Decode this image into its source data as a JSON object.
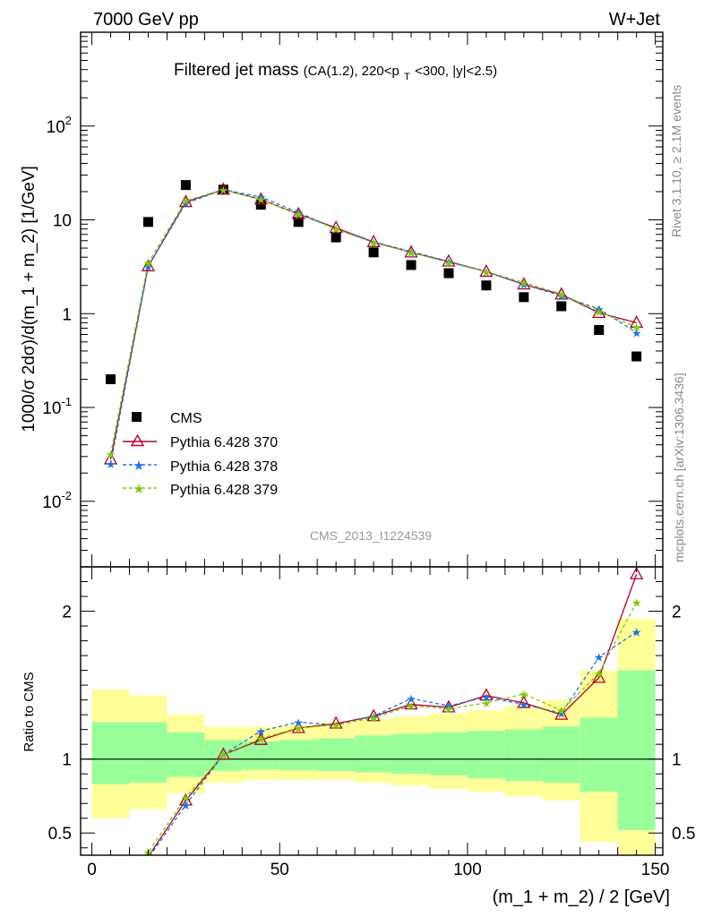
{
  "header": {
    "left": "7000 GeV pp",
    "right": "W+Jet"
  },
  "title": {
    "main": "Filtered jet mass",
    "sub_prefix": "(CA(1.2), 220<p",
    "sub_sub": "T",
    "sub_suffix": "<300, |y|<2.5)"
  },
  "side_labels": {
    "rivet": "Rivet 3.1.10, ≥ 2.1M events",
    "mcplots": "mcplots.cern.ch [arXiv:1306.3436]"
  },
  "analysis_id": "CMS_2013_I1224539",
  "colors": {
    "data": "#000000",
    "p370": "#b2002c",
    "p378": "#1a75e0",
    "p379": "#7ecc00",
    "band_inner": "#99ff99",
    "band_outer": "#ffff99"
  },
  "chart_data": [
    {
      "type": "scatter",
      "panel": "main",
      "ylabel": "1000/σ 2dσ)/d(m_1 + m_2) [1/GeV]",
      "yscale": "log",
      "ylim": [
        0.002,
        1000
      ],
      "xlim": [
        -3,
        152
      ],
      "ytick_labels": [
        {
          "v": 0.01,
          "base": "10",
          "exp": "-2"
        },
        {
          "v": 0.1,
          "base": "10",
          "exp": "-1"
        },
        {
          "v": 1,
          "base": "1",
          "exp": ""
        },
        {
          "v": 10,
          "base": "10",
          "exp": ""
        },
        {
          "v": 100,
          "base": "10",
          "exp": "2"
        }
      ],
      "x": [
        5,
        15,
        25,
        35,
        45,
        55,
        65,
        75,
        85,
        95,
        105,
        115,
        125,
        135,
        145
      ],
      "series": [
        {
          "name": "CMS",
          "key": "data",
          "values": [
            0.2,
            9.5,
            23.5,
            21,
            14.5,
            9.5,
            6.5,
            4.5,
            3.3,
            2.7,
            2.0,
            1.5,
            1.2,
            0.67,
            0.35
          ]
        },
        {
          "name": "Pythia 6.428 370",
          "key": "p370",
          "values": [
            0.028,
            3.2,
            15.5,
            21,
            16.5,
            11.5,
            8.2,
            5.8,
            4.5,
            3.6,
            2.8,
            2.05,
            1.6,
            1.02,
            0.8
          ]
        },
        {
          "name": "Pythia 6.428 378",
          "key": "p378",
          "values": [
            0.025,
            3.2,
            15.0,
            21,
            17.5,
            12.0,
            8.0,
            5.8,
            4.6,
            3.6,
            2.8,
            2.05,
            1.55,
            1.12,
            0.63
          ]
        },
        {
          "name": "Pythia 6.428 379",
          "key": "p379",
          "values": [
            0.032,
            3.5,
            16.0,
            21,
            16.5,
            11.5,
            8.0,
            5.7,
            4.5,
            3.5,
            2.8,
            2.15,
            1.62,
            1.05,
            0.72
          ]
        }
      ]
    },
    {
      "type": "line",
      "panel": "ratio",
      "ylabel": "Ratio to CMS",
      "xlabel": "(m_1 + m_2) / 2 [GeV]",
      "ylim": [
        0.35,
        2.3
      ],
      "xlim": [
        -3,
        152
      ],
      "xtick_labels": [
        0,
        50,
        100,
        150
      ],
      "ytick_labels": [
        0.5,
        1,
        2
      ],
      "reference_line": 1,
      "bands": {
        "edges": [
          0,
          10,
          20,
          30,
          40,
          50,
          60,
          70,
          80,
          90,
          100,
          110,
          120,
          130,
          140,
          150
        ],
        "inner_low": [
          0.83,
          0.84,
          0.88,
          0.92,
          0.93,
          0.925,
          0.92,
          0.91,
          0.9,
          0.89,
          0.87,
          0.85,
          0.84,
          0.78,
          0.52
        ],
        "inner_high": [
          1.25,
          1.25,
          1.18,
          1.13,
          1.12,
          1.13,
          1.14,
          1.16,
          1.17,
          1.18,
          1.19,
          1.2,
          1.22,
          1.28,
          1.6
        ],
        "outer_low": [
          0.6,
          0.66,
          0.77,
          0.84,
          0.86,
          0.86,
          0.86,
          0.84,
          0.82,
          0.8,
          0.78,
          0.75,
          0.72,
          0.44,
          0.3
        ],
        "outer_high": [
          1.47,
          1.43,
          1.3,
          1.22,
          1.22,
          1.23,
          1.25,
          1.27,
          1.29,
          1.31,
          1.33,
          1.36,
          1.4,
          1.6,
          1.95
        ]
      },
      "x": [
        5,
        15,
        25,
        35,
        45,
        55,
        65,
        75,
        85,
        95,
        105,
        115,
        125,
        135,
        145
      ],
      "series": [
        {
          "name": "Pythia 6.428 370",
          "key": "p370",
          "values": [
            0.14,
            0.34,
            0.72,
            1.03,
            1.13,
            1.21,
            1.24,
            1.29,
            1.37,
            1.35,
            1.43,
            1.38,
            1.3,
            1.55,
            2.25
          ]
        },
        {
          "name": "Pythia 6.428 378",
          "key": "p378",
          "values": [
            0.13,
            0.33,
            0.69,
            1.03,
            1.19,
            1.25,
            1.23,
            1.29,
            1.41,
            1.36,
            1.42,
            1.37,
            1.31,
            1.69,
            1.86
          ]
        },
        {
          "name": "Pythia 6.428 379",
          "key": "p379",
          "values": [
            0.16,
            0.37,
            0.74,
            1.03,
            1.14,
            1.21,
            1.23,
            1.28,
            1.36,
            1.34,
            1.38,
            1.44,
            1.33,
            1.58,
            2.06
          ]
        }
      ]
    }
  ]
}
